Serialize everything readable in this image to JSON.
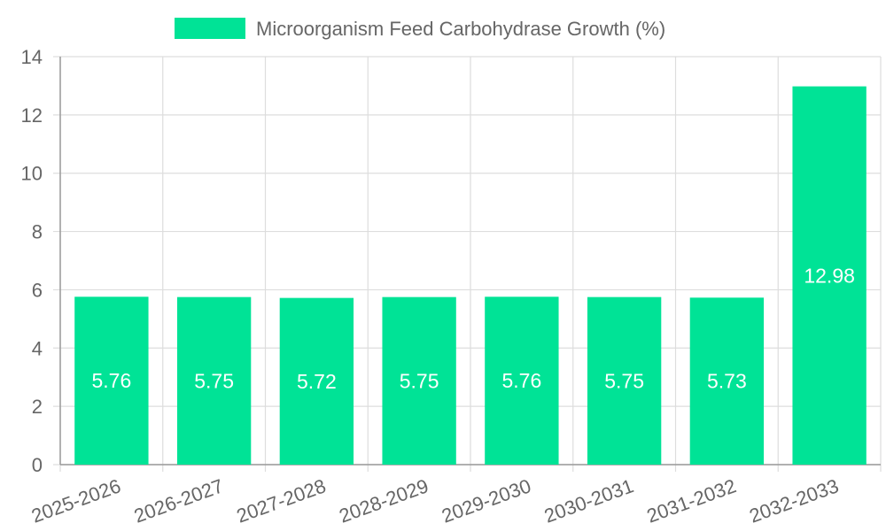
{
  "chart_data": {
    "type": "bar",
    "categories": [
      "2025-2026",
      "2026-2027",
      "2027-2028",
      "2028-2029",
      "2029-2030",
      "2030-2031",
      "2031-2032",
      "2032-2033"
    ],
    "series": [
      {
        "name": "Microorganism Feed Carbohydrase Growth (%)",
        "values": [
          5.76,
          5.75,
          5.72,
          5.75,
          5.76,
          5.75,
          5.73,
          12.98
        ],
        "color": "#00e396"
      }
    ],
    "ylim": [
      0,
      14
    ],
    "yticks": [
      0,
      2,
      4,
      6,
      8,
      10,
      12,
      14
    ],
    "grid": true,
    "legend_position": "top",
    "data_labels": true,
    "title": "",
    "xlabel": "",
    "ylabel": ""
  },
  "colors": {
    "grid": "#dddddd",
    "axis": "#999999",
    "text": "#666666",
    "label": "#ffffff"
  }
}
